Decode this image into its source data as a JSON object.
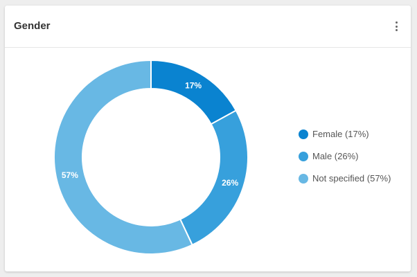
{
  "card": {
    "title": "Gender",
    "menu_icon": "more-vertical-icon"
  },
  "colors": {
    "female": "#0a83d0",
    "male": "#37a0dc",
    "not_specified": "#68b8e4"
  },
  "chart_data": {
    "type": "pie",
    "donut": true,
    "title": "",
    "legend_placement": "right",
    "slices": [
      {
        "label": "Female (17%)",
        "value": 17,
        "data_label": "17%",
        "color": "#0a83d0"
      },
      {
        "label": "Male (26%)",
        "value": 26,
        "data_label": "26%",
        "color": "#37a0dc"
      },
      {
        "label": "Not specified (57%)",
        "value": 57,
        "data_label": "57%",
        "color": "#68b8e4"
      }
    ]
  }
}
